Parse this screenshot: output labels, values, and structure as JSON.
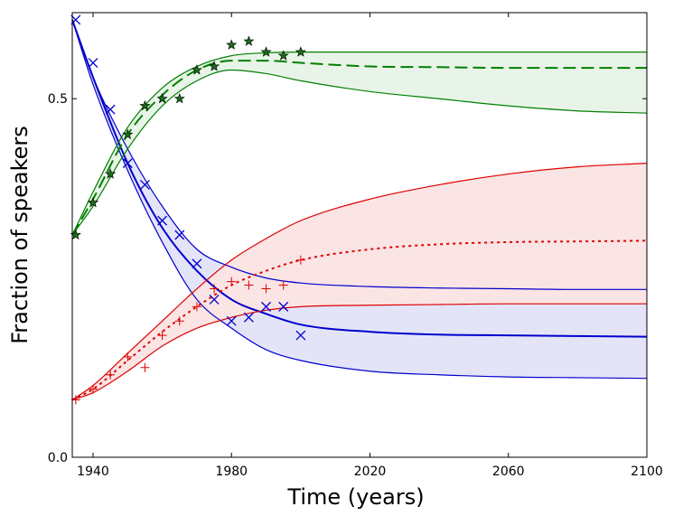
{
  "chart_data": {
    "type": "line",
    "title": "",
    "xlabel": "Time (years)",
    "ylabel": "Fraction of speakers",
    "xlim": [
      1934,
      2100
    ],
    "ylim": [
      0.0,
      0.62
    ],
    "x_ticks": [
      1940,
      1980,
      2020,
      2060,
      2100
    ],
    "x_tick_labels": [
      "1940",
      "1980",
      "2020",
      "2060",
      "2100"
    ],
    "y_ticks": [
      0.0,
      0.5
    ],
    "y_tick_labels": [
      "0.0",
      "0.5"
    ],
    "grid": false,
    "legend": "none",
    "series": [
      {
        "color": "#0000cc",
        "fill": "#e4e4f9",
        "marker": "x",
        "line_style": "solid",
        "x": [
          1934,
          1940,
          1950,
          1960,
          1970,
          1980,
          1990,
          2000,
          2020,
          2040,
          2060,
          2080,
          2100
        ],
        "center": [
          0.61,
          0.53,
          0.41,
          0.32,
          0.26,
          0.22,
          0.2,
          0.185,
          0.175,
          0.171,
          0.17,
          0.169,
          0.168
        ],
        "upper": [
          0.61,
          0.53,
          0.43,
          0.35,
          0.29,
          0.265,
          0.25,
          0.243,
          0.238,
          0.236,
          0.235,
          0.234,
          0.234
        ],
        "lower": [
          0.61,
          0.52,
          0.4,
          0.3,
          0.22,
          0.18,
          0.15,
          0.135,
          0.12,
          0.115,
          0.112,
          0.111,
          0.11
        ],
        "observed": [
          [
            1935,
            0.61
          ],
          [
            1940,
            0.55
          ],
          [
            1945,
            0.485
          ],
          [
            1950,
            0.41
          ],
          [
            1955,
            0.38
          ],
          [
            1960,
            0.33
          ],
          [
            1965,
            0.31
          ],
          [
            1970,
            0.27
          ],
          [
            1975,
            0.22
          ],
          [
            1980,
            0.19
          ],
          [
            1985,
            0.195
          ],
          [
            1990,
            0.21
          ],
          [
            1995,
            0.21
          ],
          [
            2000,
            0.17
          ]
        ]
      },
      {
        "color": "#008000",
        "fill": "#e9f4e9",
        "marker": "star",
        "line_style": "dashed",
        "x": [
          1934,
          1940,
          1950,
          1960,
          1970,
          1980,
          1990,
          2000,
          2020,
          2040,
          2060,
          2080,
          2100
        ],
        "center": [
          0.31,
          0.36,
          0.45,
          0.505,
          0.54,
          0.553,
          0.553,
          0.55,
          0.545,
          0.544,
          0.543,
          0.543,
          0.543
        ],
        "upper": [
          0.31,
          0.37,
          0.46,
          0.515,
          0.545,
          0.56,
          0.564,
          0.565,
          0.565,
          0.565,
          0.565,
          0.565,
          0.565
        ],
        "lower": [
          0.31,
          0.35,
          0.43,
          0.49,
          0.525,
          0.54,
          0.535,
          0.525,
          0.51,
          0.5,
          0.49,
          0.483,
          0.48
        ],
        "observed": [
          [
            1935,
            0.31
          ],
          [
            1940,
            0.355
          ],
          [
            1945,
            0.395
          ],
          [
            1950,
            0.45
          ],
          [
            1955,
            0.49
          ],
          [
            1960,
            0.5
          ],
          [
            1965,
            0.5
          ],
          [
            1970,
            0.54
          ],
          [
            1975,
            0.545
          ],
          [
            1980,
            0.575
          ],
          [
            1985,
            0.58
          ],
          [
            1990,
            0.565
          ],
          [
            1995,
            0.56
          ],
          [
            2000,
            0.565
          ]
        ]
      },
      {
        "color": "#dd0000",
        "fill": "#fbe4e4",
        "marker": "plus",
        "line_style": "dotted",
        "x": [
          1934,
          1940,
          1950,
          1960,
          1970,
          1980,
          1990,
          2000,
          2020,
          2040,
          2060,
          2080,
          2100
        ],
        "center": [
          0.08,
          0.095,
          0.135,
          0.175,
          0.21,
          0.24,
          0.26,
          0.275,
          0.29,
          0.297,
          0.3,
          0.301,
          0.302
        ],
        "upper": [
          0.08,
          0.1,
          0.145,
          0.19,
          0.235,
          0.275,
          0.305,
          0.33,
          0.36,
          0.38,
          0.395,
          0.405,
          0.41
        ],
        "lower": [
          0.08,
          0.09,
          0.12,
          0.155,
          0.18,
          0.195,
          0.205,
          0.21,
          0.212,
          0.213,
          0.214,
          0.214,
          0.214
        ],
        "observed": [
          [
            1935,
            0.08
          ],
          [
            1940,
            0.095
          ],
          [
            1945,
            0.115
          ],
          [
            1950,
            0.14
          ],
          [
            1955,
            0.125
          ],
          [
            1960,
            0.17
          ],
          [
            1965,
            0.19
          ],
          [
            1970,
            0.21
          ],
          [
            1975,
            0.235
          ],
          [
            1980,
            0.245
          ],
          [
            1985,
            0.24
          ],
          [
            1990,
            0.235
          ],
          [
            1995,
            0.24
          ],
          [
            2000,
            0.275
          ]
        ]
      }
    ]
  }
}
